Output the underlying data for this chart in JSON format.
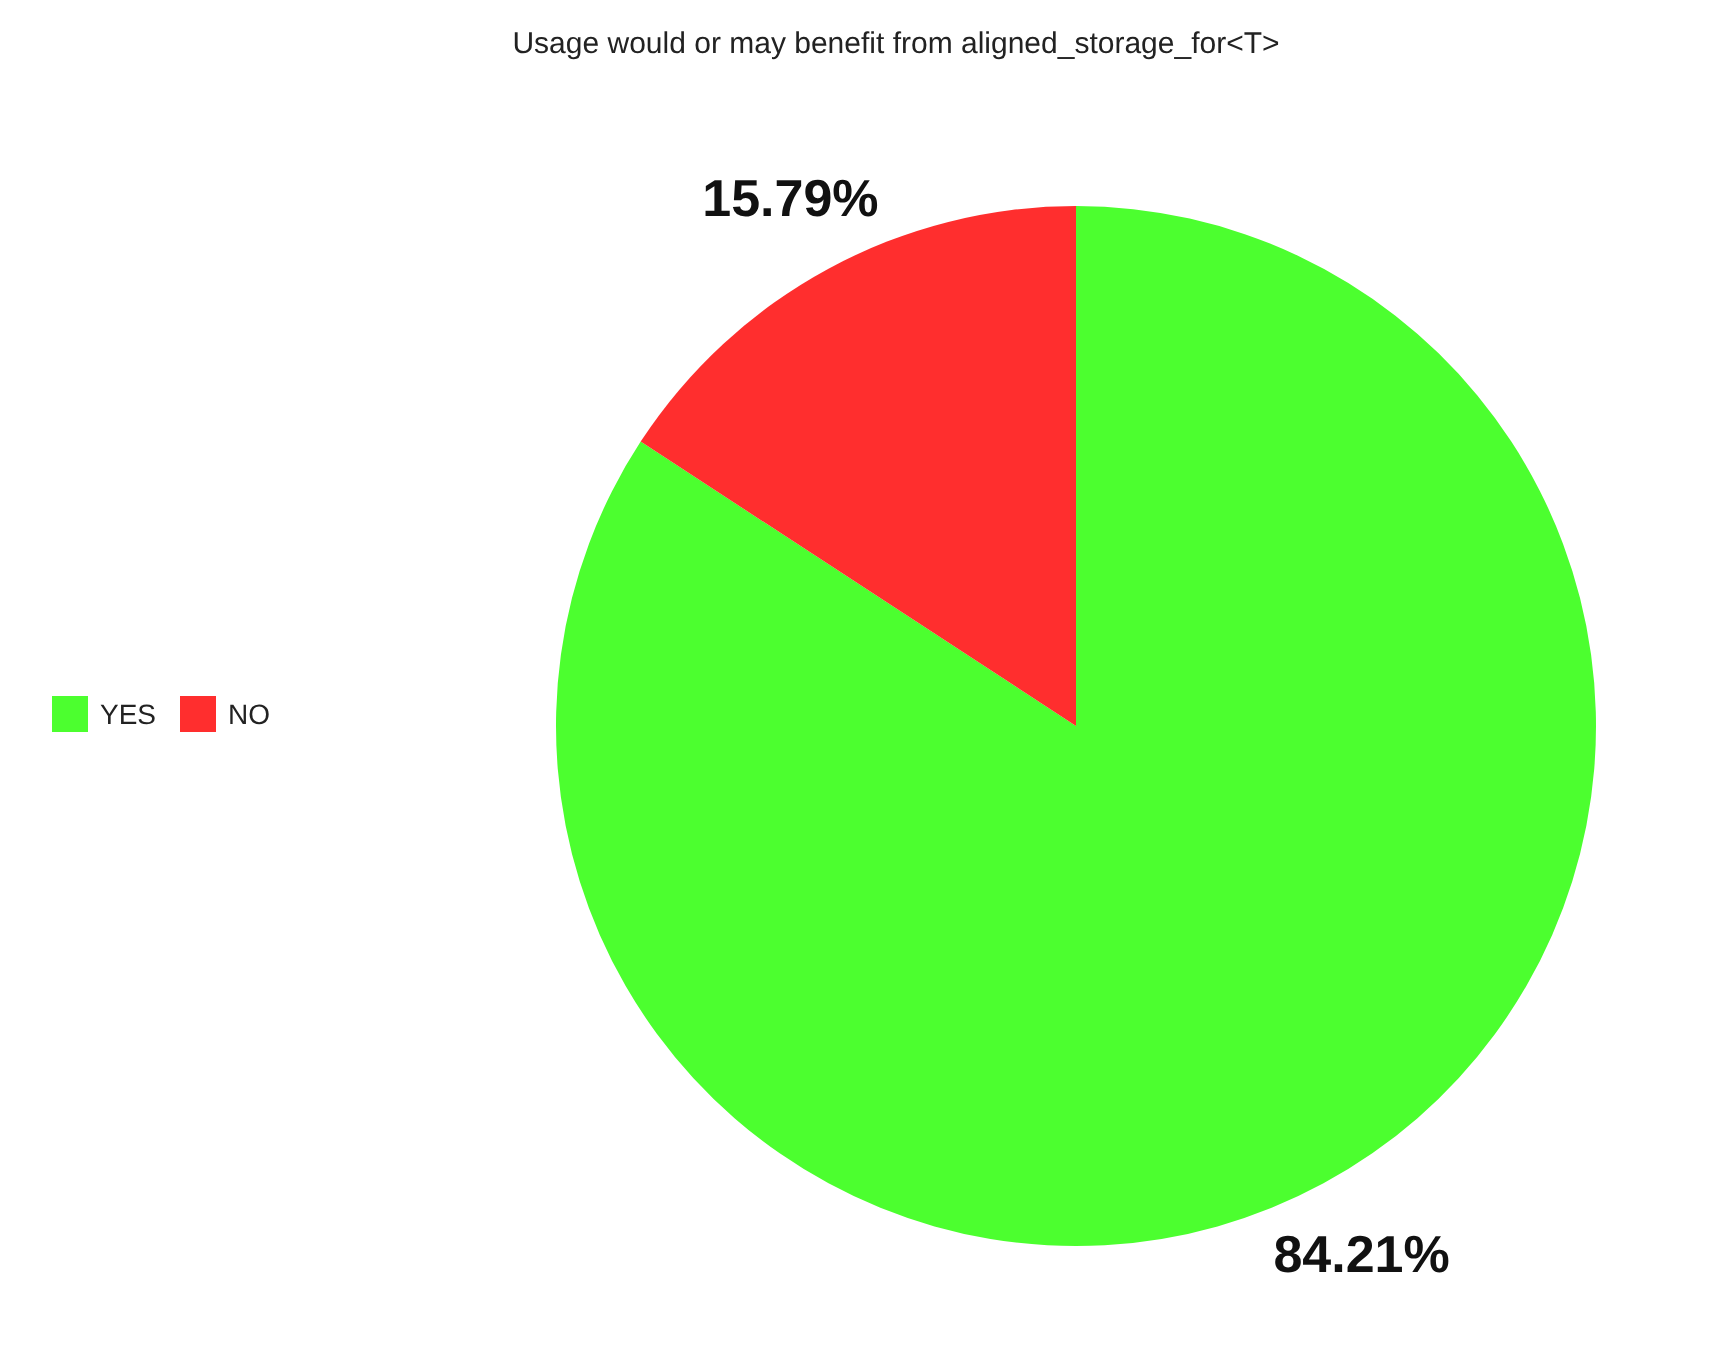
{
  "chart_data": {
    "type": "pie",
    "title": "Usage would or may benefit from aligned_storage_for<T>",
    "categories": [
      "YES",
      "NO"
    ],
    "values": [
      84.21,
      15.79
    ],
    "colors": [
      "#4cff2f",
      "#ff2e2e"
    ],
    "value_labels": [
      "84.21%",
      "15.79%"
    ],
    "legend": "left"
  }
}
